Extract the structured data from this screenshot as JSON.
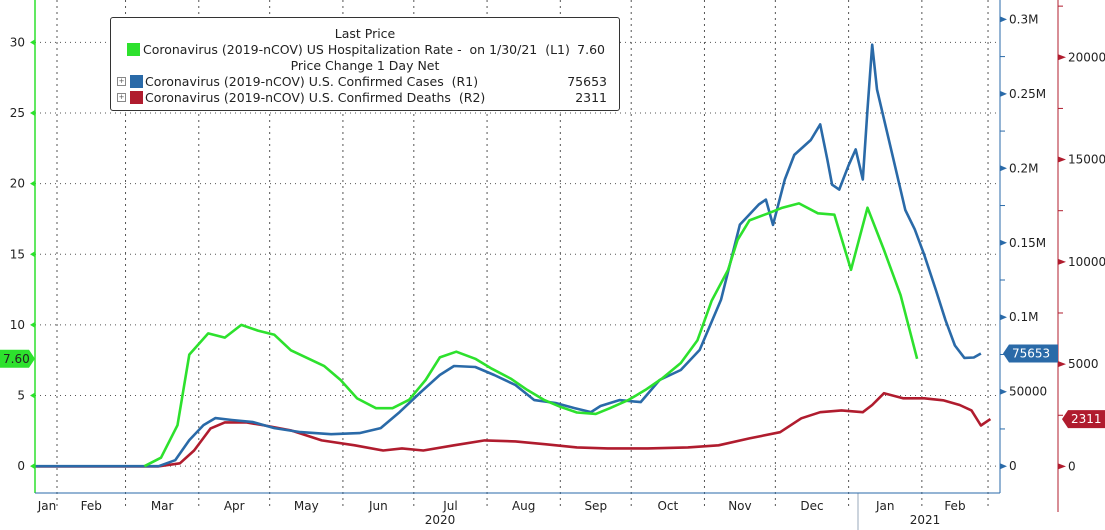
{
  "chart_data": {
    "type": "line",
    "title": "",
    "legend": {
      "placement": "top-left",
      "header_1": "Last Price",
      "header_2": "Price Change 1 Day Net",
      "entries": [
        {
          "label": "Coronavirus (2019-nCOV) US Hospitalization Rate -  on 1/30/21  (L1)",
          "value": "7.60",
          "color": "#2de12d"
        },
        {
          "label": "Coronavirus (2019-nCOV) U.S. Confirmed Cases  (R1)",
          "value": "75653",
          "color": "#2a6aa8"
        },
        {
          "label": "Coronavirus (2019-nCOV) U.S. Confirmed Deaths  (R2)",
          "value": "2311",
          "color": "#b01c2e"
        }
      ]
    },
    "x_axis": {
      "months": [
        "Jan",
        "Feb",
        "Mar",
        "Apr",
        "May",
        "Jun",
        "Jul",
        "Aug",
        "Sep",
        "Oct",
        "Nov",
        "Dec",
        "Jan",
        "Feb"
      ],
      "years": [
        "2020",
        "2021"
      ],
      "grid": true
    },
    "y_left": {
      "ticks": [
        "0",
        "5",
        "10",
        "15",
        "20",
        "25",
        "30"
      ],
      "range": [
        -1.9,
        33
      ],
      "color": "#2de12d",
      "last_tag": "7.60"
    },
    "y_right1": {
      "ticks": [
        "0",
        "50000",
        "0.1M",
        "0.15M",
        "0.2M",
        "0.25M",
        "0.3M"
      ],
      "range": [
        -18000,
        313000
      ],
      "color": "#2a6aa8",
      "last_tag": "75653"
    },
    "y_right2": {
      "ticks": [
        "0",
        "5000",
        "10000",
        "15000",
        "20000"
      ],
      "range": [
        -1300,
        22800
      ],
      "color": "#b01c2e",
      "last_tag": "2311"
    },
    "grid": true,
    "series": [
      {
        "name": "Coronavirus (2019-nCOV) US Hospitalization Rate",
        "axis": "left",
        "color": "#2de12d",
        "points": [
          [
            "2020-03-09",
            0
          ],
          [
            "2020-03-16",
            0.6
          ],
          [
            "2020-03-23",
            2.9
          ],
          [
            "2020-03-28",
            7.9
          ],
          [
            "2020-04-05",
            9.4
          ],
          [
            "2020-04-12",
            9.1
          ],
          [
            "2020-04-19",
            10.0
          ],
          [
            "2020-04-26",
            9.6
          ],
          [
            "2020-05-03",
            9.3
          ],
          [
            "2020-05-10",
            8.2
          ],
          [
            "2020-05-24",
            7.1
          ],
          [
            "2020-05-31",
            6.1
          ],
          [
            "2020-06-07",
            4.8
          ],
          [
            "2020-06-15",
            4.1
          ],
          [
            "2020-06-22",
            4.1
          ],
          [
            "2020-06-29",
            4.7
          ],
          [
            "2020-07-06",
            6.1
          ],
          [
            "2020-07-12",
            7.7
          ],
          [
            "2020-07-19",
            8.1
          ],
          [
            "2020-07-27",
            7.6
          ],
          [
            "2020-08-03",
            6.9
          ],
          [
            "2020-08-11",
            6.2
          ],
          [
            "2020-08-18",
            5.4
          ],
          [
            "2020-08-25",
            4.7
          ],
          [
            "2020-09-01",
            4.2
          ],
          [
            "2020-09-08",
            3.8
          ],
          [
            "2020-09-16",
            3.7
          ],
          [
            "2020-09-22",
            4.1
          ],
          [
            "2020-09-30",
            4.7
          ],
          [
            "2020-10-07",
            5.4
          ],
          [
            "2020-10-14",
            6.2
          ],
          [
            "2020-10-22",
            7.3
          ],
          [
            "2020-10-29",
            8.9
          ],
          [
            "2020-11-04",
            11.7
          ],
          [
            "2020-11-11",
            13.9
          ],
          [
            "2020-11-15",
            16.0
          ],
          [
            "2020-11-20",
            17.4
          ],
          [
            "2020-11-28",
            17.9
          ],
          [
            "2020-12-04",
            18.3
          ],
          [
            "2020-12-11",
            18.6
          ],
          [
            "2020-12-19",
            17.9
          ],
          [
            "2020-12-26",
            17.8
          ],
          [
            "2021-01-02",
            13.9
          ],
          [
            "2021-01-09",
            18.3
          ],
          [
            "2021-01-16",
            15.3
          ],
          [
            "2021-01-23",
            12.1
          ],
          [
            "2021-01-30",
            7.6
          ]
        ]
      },
      {
        "name": "Coronavirus (2019-nCOV) U.S. Confirmed Cases",
        "axis": "right1",
        "color": "#2a6aa8",
        "points": [
          [
            "2020-01-22",
            0
          ],
          [
            "2020-03-15",
            0
          ],
          [
            "2020-03-22",
            4000
          ],
          [
            "2020-03-28",
            17500
          ],
          [
            "2020-04-03",
            27600
          ],
          [
            "2020-04-08",
            32300
          ],
          [
            "2020-04-15",
            31000
          ],
          [
            "2020-04-24",
            29600
          ],
          [
            "2020-05-03",
            25600
          ],
          [
            "2020-05-14",
            22900
          ],
          [
            "2020-05-27",
            21500
          ],
          [
            "2020-06-08",
            22200
          ],
          [
            "2020-06-17",
            25600
          ],
          [
            "2020-06-25",
            36300
          ],
          [
            "2020-07-04",
            49800
          ],
          [
            "2020-07-12",
            61200
          ],
          [
            "2020-07-18",
            67300
          ],
          [
            "2020-07-27",
            66600
          ],
          [
            "2020-08-04",
            61200
          ],
          [
            "2020-08-13",
            54500
          ],
          [
            "2020-08-21",
            44400
          ],
          [
            "2020-08-30",
            42400
          ],
          [
            "2020-09-07",
            39000
          ],
          [
            "2020-09-14",
            36300
          ],
          [
            "2020-09-18",
            40400
          ],
          [
            "2020-09-26",
            44400
          ],
          [
            "2020-10-05",
            43000
          ],
          [
            "2020-10-13",
            57900
          ],
          [
            "2020-10-22",
            64600
          ],
          [
            "2020-10-30",
            78100
          ],
          [
            "2020-11-08",
            111700
          ],
          [
            "2020-11-16",
            162200
          ],
          [
            "2020-11-24",
            175700
          ],
          [
            "2020-11-27",
            179000
          ],
          [
            "2020-11-30",
            162000
          ],
          [
            "2020-12-05",
            192500
          ],
          [
            "2020-12-09",
            209000
          ],
          [
            "2020-12-16",
            219000
          ],
          [
            "2020-12-20",
            229500
          ],
          [
            "2020-12-23",
            206000
          ],
          [
            "2020-12-25",
            189000
          ],
          [
            "2020-12-28",
            185700
          ],
          [
            "2021-01-01",
            202000
          ],
          [
            "2021-01-04",
            212700
          ],
          [
            "2021-01-07",
            192500
          ],
          [
            "2021-01-09",
            239600
          ],
          [
            "2021-01-11",
            283000
          ],
          [
            "2021-01-13",
            253000
          ],
          [
            "2021-01-16",
            233000
          ],
          [
            "2021-01-21",
            199000
          ],
          [
            "2021-01-25",
            172000
          ],
          [
            "2021-01-29",
            159000
          ],
          [
            "2021-02-02",
            142000
          ],
          [
            "2021-02-07",
            118000
          ],
          [
            "2021-02-11",
            98000
          ],
          [
            "2021-02-15",
            81000
          ],
          [
            "2021-02-19",
            72700
          ],
          [
            "2021-02-23",
            73000
          ],
          [
            "2021-02-26",
            75653
          ]
        ]
      },
      {
        "name": "Coronavirus (2019-nCOV) U.S. Confirmed Deaths",
        "axis": "right2",
        "color": "#b01c2e",
        "points": [
          [
            "2020-01-22",
            0
          ],
          [
            "2020-03-15",
            0
          ],
          [
            "2020-03-24",
            150
          ],
          [
            "2020-03-30",
            780
          ],
          [
            "2020-04-06",
            1860
          ],
          [
            "2020-04-12",
            2150
          ],
          [
            "2020-04-21",
            2150
          ],
          [
            "2020-04-29",
            2000
          ],
          [
            "2020-05-10",
            1760
          ],
          [
            "2020-05-23",
            1270
          ],
          [
            "2020-06-06",
            1030
          ],
          [
            "2020-06-18",
            780
          ],
          [
            "2020-06-26",
            880
          ],
          [
            "2020-07-05",
            780
          ],
          [
            "2020-07-18",
            1030
          ],
          [
            "2020-07-31",
            1270
          ],
          [
            "2020-08-13",
            1220
          ],
          [
            "2020-08-26",
            1080
          ],
          [
            "2020-09-08",
            930
          ],
          [
            "2020-09-21",
            880
          ],
          [
            "2020-10-08",
            880
          ],
          [
            "2020-10-25",
            930
          ],
          [
            "2020-11-07",
            1030
          ],
          [
            "2020-11-20",
            1370
          ],
          [
            "2020-12-03",
            1670
          ],
          [
            "2020-12-12",
            2350
          ],
          [
            "2020-12-20",
            2650
          ],
          [
            "2020-12-29",
            2740
          ],
          [
            "2021-01-07",
            2650
          ],
          [
            "2021-01-11",
            3000
          ],
          [
            "2021-01-16",
            3580
          ],
          [
            "2021-01-24",
            3330
          ],
          [
            "2021-02-02",
            3330
          ],
          [
            "2021-02-10",
            3230
          ],
          [
            "2021-02-17",
            3000
          ],
          [
            "2021-02-22",
            2740
          ],
          [
            "2021-02-26",
            2000
          ],
          [
            "2021-03-02",
            2311
          ]
        ]
      }
    ]
  }
}
